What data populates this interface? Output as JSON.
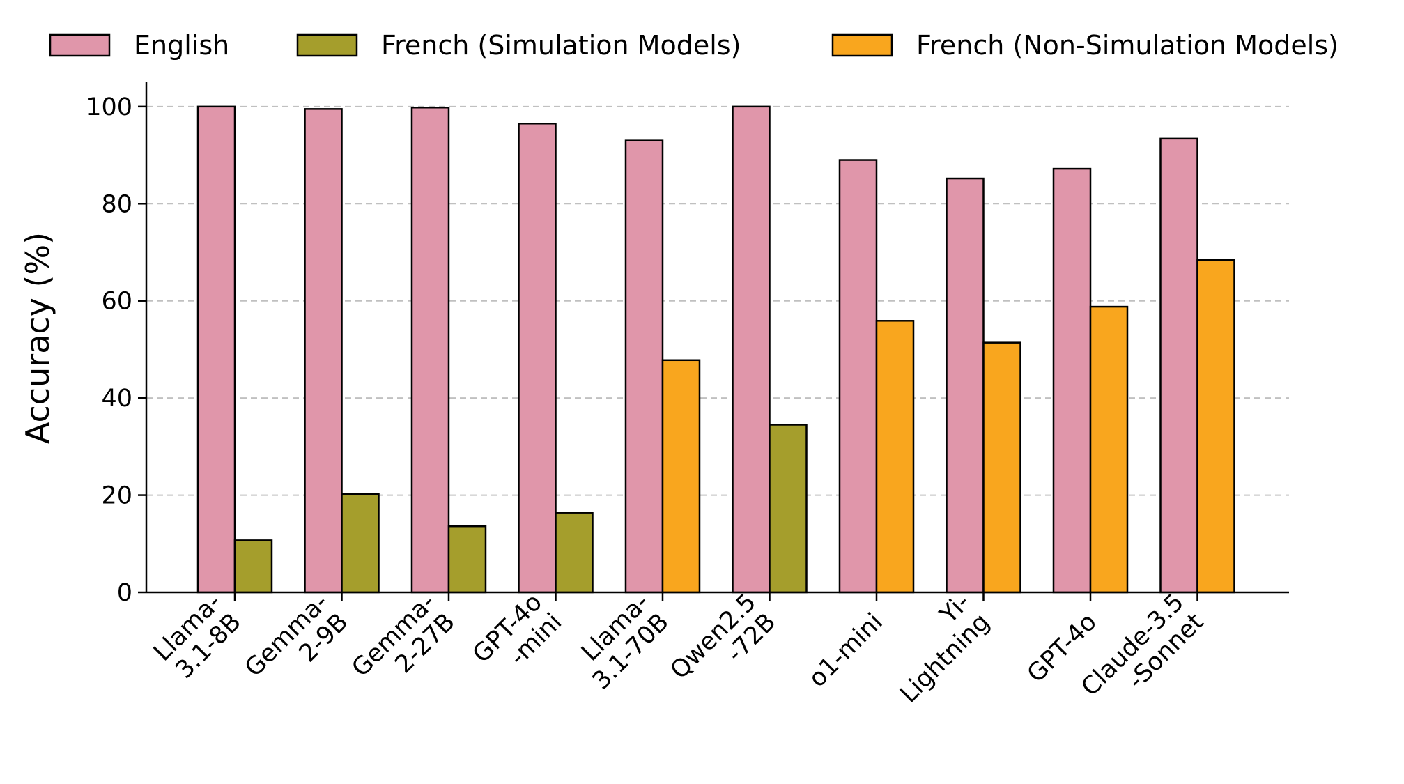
{
  "chart_data": {
    "type": "bar",
    "title": "",
    "xlabel": "",
    "ylabel": "Accuracy (%)",
    "ylim": [
      0,
      105
    ],
    "yticks": [
      0,
      20,
      40,
      60,
      80,
      100
    ],
    "grid": "horizontal-dashed",
    "legend_placement": "top",
    "categories": [
      [
        "Llama-",
        "3.1-8B"
      ],
      [
        "Gemma-",
        "2-9B"
      ],
      [
        "Gemma-",
        "2-27B"
      ],
      [
        "GPT-4o",
        "-mini"
      ],
      [
        "Llama-",
        "3.1-70B"
      ],
      [
        "Qwen2.5",
        "-72B"
      ],
      [
        "o1-mini"
      ],
      [
        "Yi-",
        "Lightning"
      ],
      [
        "GPT-4o"
      ],
      [
        "Claude-3.5",
        "-Sonnet"
      ]
    ],
    "legend": [
      {
        "name": "English",
        "color": "#E096AA"
      },
      {
        "name": "French (Simulation Models)",
        "color": "#A59E2C"
      },
      {
        "name": "French (Non-Simulation Models)",
        "color": "#F9A61E"
      }
    ],
    "series": [
      {
        "name": "English",
        "color": "#E096AA",
        "values": [
          100,
          99.5,
          99.8,
          96.5,
          93,
          100,
          89,
          85.2,
          87.2,
          93.4
        ]
      },
      {
        "name": "French",
        "values": [
          10.7,
          20.2,
          13.6,
          16.4,
          47.8,
          34.5,
          55.9,
          51.4,
          58.8,
          68.4
        ],
        "colors": [
          "#A59E2C",
          "#A59E2C",
          "#A59E2C",
          "#A59E2C",
          "#F9A61E",
          "#A59E2C",
          "#F9A61E",
          "#F9A61E",
          "#F9A61E",
          "#F9A61E"
        ]
      }
    ]
  }
}
